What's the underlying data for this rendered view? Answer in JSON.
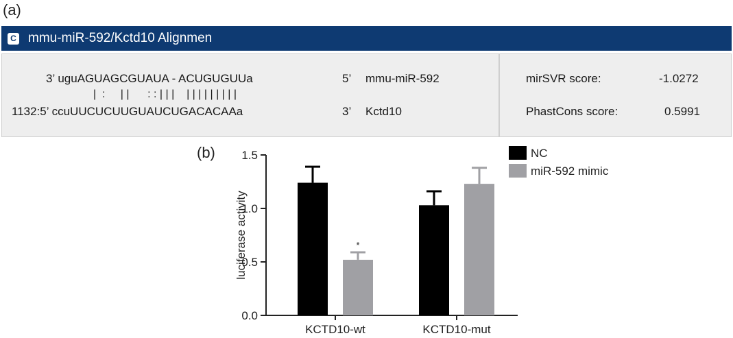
{
  "panel_a_label": "(a)",
  "panel_b_label": "(b)",
  "alignment": {
    "badge": "C",
    "title": "mmu-miR-592/Kctd10 Alignmen",
    "mirna_seq": "3’ uguAGUAGCGUAUA - ACUGUGUUa",
    "match_line": "|  :     | |      : : | | |    | | | | | | | | |",
    "target_seq": "1132:5’ ccuUUCUCUUGUAUCUGACACAAa",
    "mirna_end": "5’",
    "mirna_name": "mmu-miR-592",
    "target_end": "3’",
    "target_name": "Kctd10",
    "scores": [
      {
        "label": "mirSVR score:",
        "value": "-1.0272"
      },
      {
        "label": "PhastCons score:",
        "value": "0.5991"
      }
    ]
  },
  "chart_data": {
    "type": "bar",
    "categories": [
      "KCTD10-wt",
      "KCTD10-mut"
    ],
    "series": [
      {
        "name": "NC",
        "values": [
          1.24,
          1.03
        ],
        "errors": [
          0.15,
          0.13
        ],
        "color": "#000000"
      },
      {
        "name": "miR-592 mimic",
        "values": [
          0.52,
          1.23
        ],
        "errors": [
          0.07,
          0.15
        ],
        "color": "#a0a0a4"
      }
    ],
    "ylabel": "luciferase activity",
    "xlabel": "",
    "ylim": [
      0,
      1.5
    ],
    "yticks": [
      "0.0",
      "0.5",
      "1.0",
      "1.5"
    ],
    "annotations": [
      {
        "category": "KCTD10-wt",
        "series": "miR-592 mimic",
        "text": "*"
      }
    ],
    "legend_position": "top-right",
    "grid": false
  }
}
